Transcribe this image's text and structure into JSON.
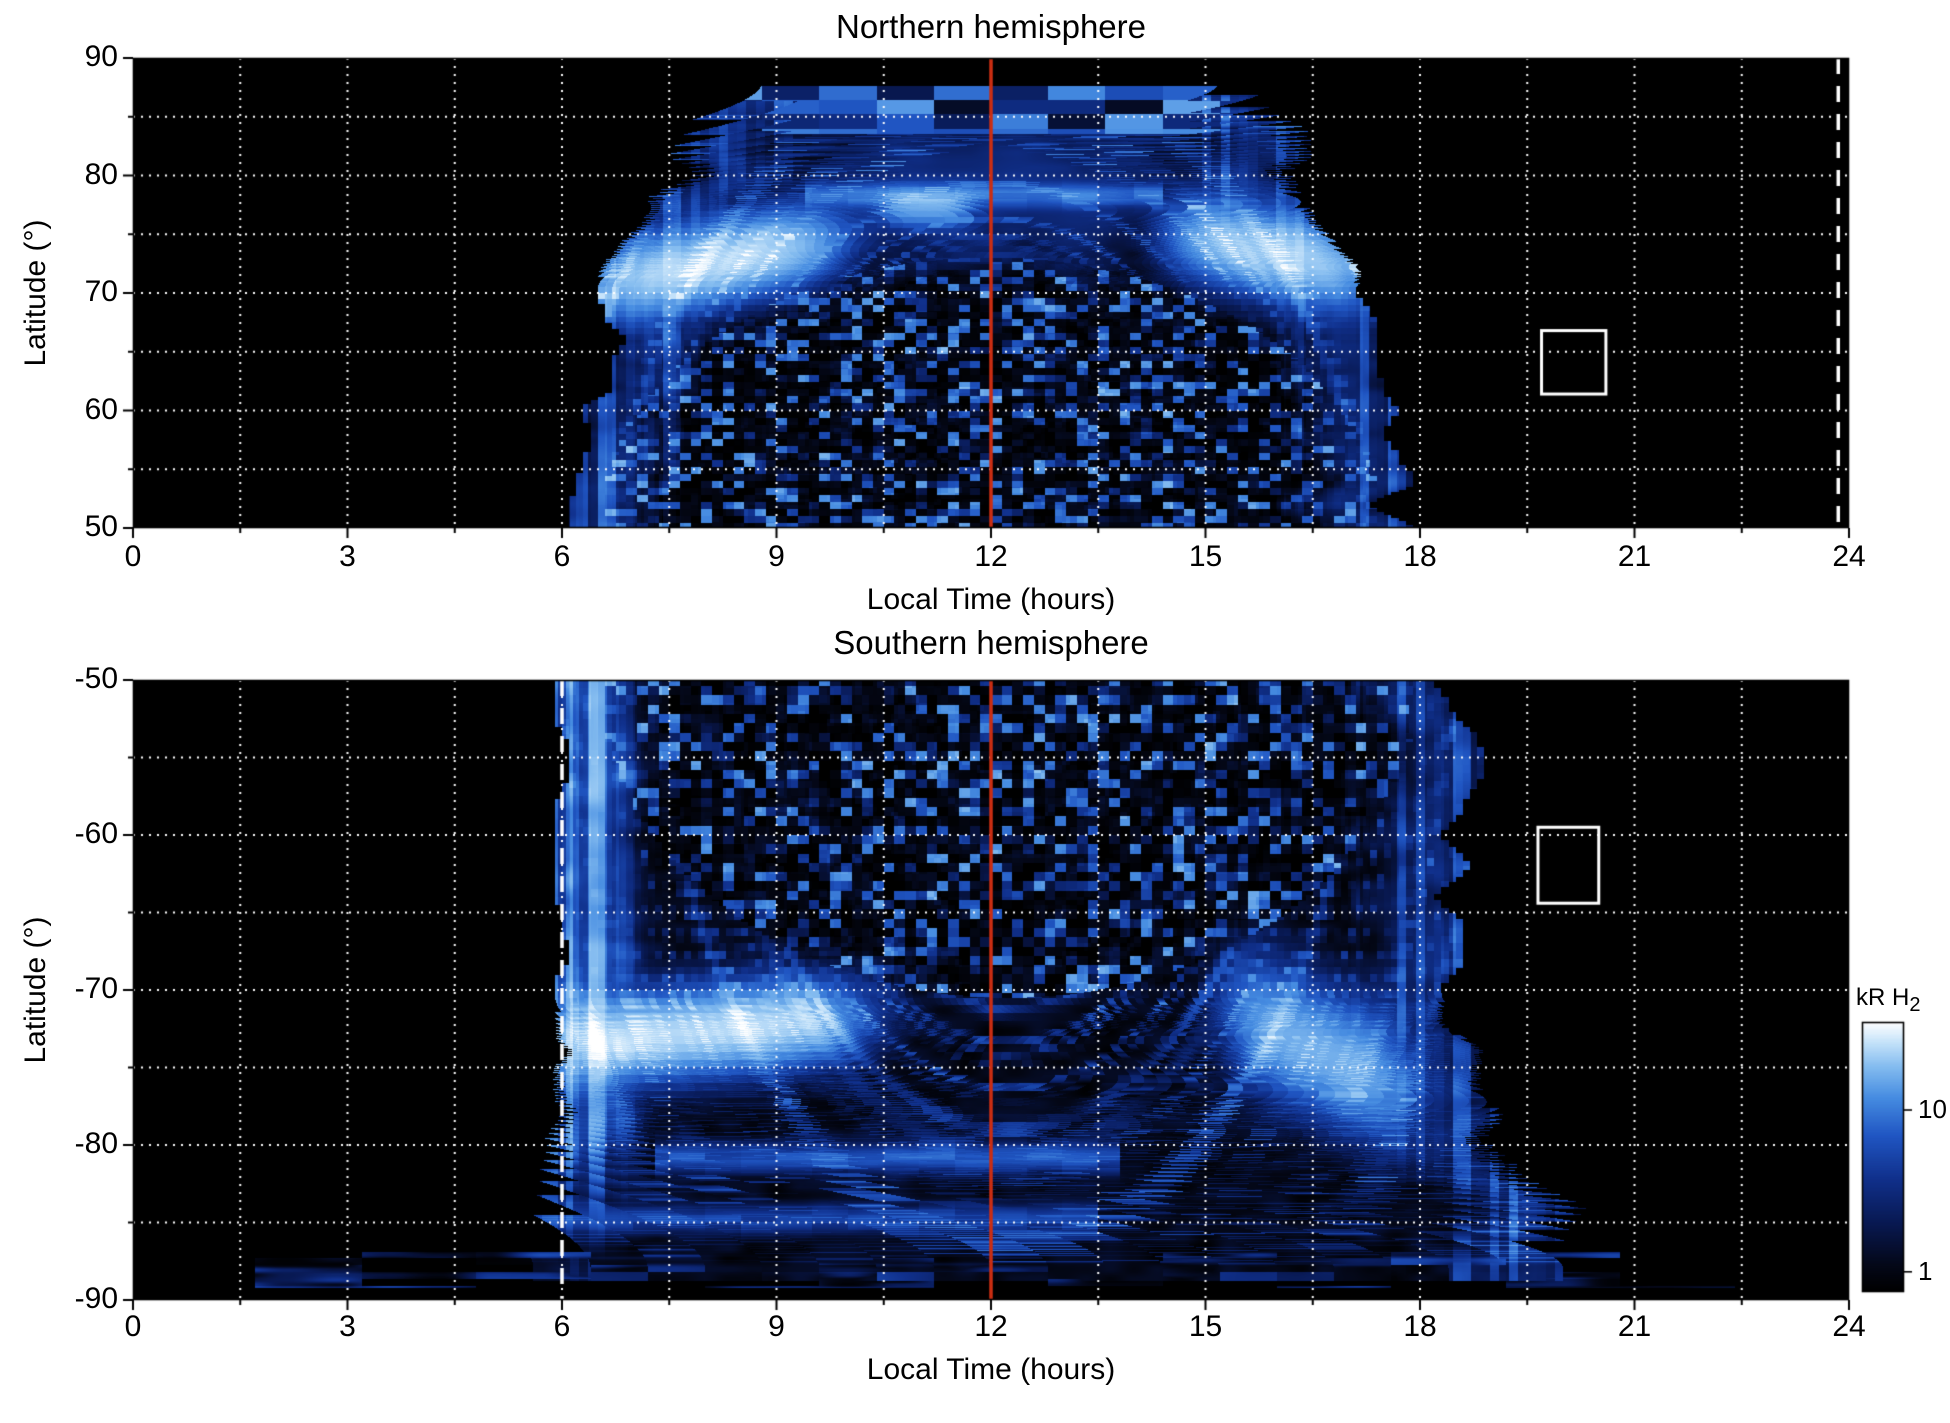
{
  "figure": {
    "background": "#ffffff",
    "accent_red": "#cc2e12",
    "grid_color": "#ffffff",
    "frame_color": "#000000"
  },
  "chart_data": [
    {
      "type": "heatmap",
      "title": "Northern hemisphere",
      "xlabel": "Local Time (hours)",
      "ylabel": "Latitude (°)",
      "xlim": [
        0,
        24
      ],
      "ylim": [
        50,
        90
      ],
      "xticks": [
        0,
        3,
        6,
        9,
        12,
        15,
        18,
        21,
        24
      ],
      "yticks": [
        90,
        80,
        70,
        60,
        50
      ],
      "x_minor_interval": 1.5,
      "y_minor_interval": 5,
      "grid": "dotted-white",
      "colormap": "black-blue-white, logarithmic, kR H2",
      "annotations": {
        "red_vertical_line_lt": 12,
        "white_dashed_line_lt": 23.85,
        "white_box": {
          "lt": [
            19.7,
            20.6
          ],
          "lat": [
            61.4,
            66.8
          ]
        }
      },
      "render": {
        "seed": 7,
        "center": 12.0,
        "hwEq": 5.6,
        "hwDrop": 2.95,
        "vTop": 87.6,
        "speckle": {
          "h": 23,
          "w": 5.45
        },
        "bright": [
          {
            "u": 8.2,
            "uw": 1.6,
            "v": 72.6,
            "vw": 2.9,
            "amp": 40,
            "tilt": 1.2
          },
          {
            "u": 15.9,
            "uw": 1.35,
            "v": 73.4,
            "vw": 3.1,
            "amp": 34,
            "tilt": -1.2
          },
          {
            "u": 11.1,
            "uw": 0.6,
            "v": 77.2,
            "vw": 1.4,
            "amp": 22,
            "tilt": 0
          }
        ],
        "noonArc": {
          "v0": 79.5,
          "amp": 8
        },
        "hbands": [
          {
            "v": 78.3,
            "u1": 9.4,
            "u2": 14.4,
            "amp": 9
          }
        ],
        "topBlocks": {
          "v1": 83.5,
          "v2": 87.6,
          "hw": 3.1
        }
      },
      "description": "Statistical map of auroral H2 emission vs local time and latitude. Emission observed between ~6.4 and ~17.6 h LT forming a dome up to ~87.5 deg; bright white (>30 kR) auroral oval patches near 70-77 deg in the morning (LT 7-9.5) and afternoon (LT 15-17) sectors; faint speckled emission equatorward of the oval; striated blue arcs elsewhere."
    },
    {
      "type": "heatmap",
      "title": "Southern hemisphere",
      "xlabel": "Local Time (hours)",
      "ylabel": "Latitude (°)",
      "xlim": [
        0,
        24
      ],
      "ylim": [
        -90,
        -50
      ],
      "xticks": [
        0,
        3,
        6,
        9,
        12,
        15,
        18,
        21,
        24
      ],
      "yticks": [
        -50,
        -60,
        -70,
        -80,
        -90
      ],
      "x_minor_interval": 1.5,
      "y_minor_interval": 5,
      "grid": "dotted-white",
      "colormap": "black-blue-white, logarithmic, kR H2",
      "annotations": {
        "red_vertical_line_lt": 12,
        "white_dashed_line_lt": 6.0,
        "white_box": {
          "lt": [
            19.65,
            20.5
          ],
          "lat": [
            -64.4,
            -59.5
          ]
        }
      },
      "render": {
        "seed": 21,
        "center": 12.25,
        "hwEq": 6.3,
        "hwDrop": 0,
        "vTop": 88.8,
        "leftSharp": 5.95,
        "hwFlare": {
          "v1": 76,
          "v2": 86,
          "amp": 1.3
        },
        "speckle": {
          "h": 20.5,
          "w": 5.7
        },
        "bright": [
          {
            "u": 7.9,
            "uw": 2.1,
            "v": 72.7,
            "vw": 2.3,
            "amp": 42,
            "tilt": -0.4
          },
          {
            "u": 16.6,
            "uw": 1.2,
            "v": 74.0,
            "vw": 3.4,
            "amp": 28,
            "tilt": 2
          }
        ],
        "hbands": [
          {
            "v": 80.8,
            "u1": 7.3,
            "u2": 13.8,
            "amp": 7
          },
          {
            "v": 84.8,
            "u1": 5.2,
            "u2": 13.5,
            "amp": 5
          }
        ],
        "bottomBand": {
          "v1": 86.9,
          "v2": 89.2,
          "u1": 1.7,
          "u2": 23.2
        }
      },
      "description": "Southern counterpart: emission between LT ~6 (sharp edge, dashed line) and ~18.5, extending to ~-88 deg; elongated white band near -72 deg from LT 6 to 10.5 and bright patch near LT 16.5, -74 deg; faint speckled emission between -50 and ~-70 deg; thin striated band near -88 deg spanning LT ~2-23."
    }
  ],
  "colorbar": {
    "title": "kR H",
    "title_sub": "2",
    "scale": "log",
    "top_value": 35,
    "bottom_value": 0.75,
    "ticks": [
      {
        "label": "10",
        "value": 10
      },
      {
        "label": "1",
        "value": 1
      }
    ]
  }
}
